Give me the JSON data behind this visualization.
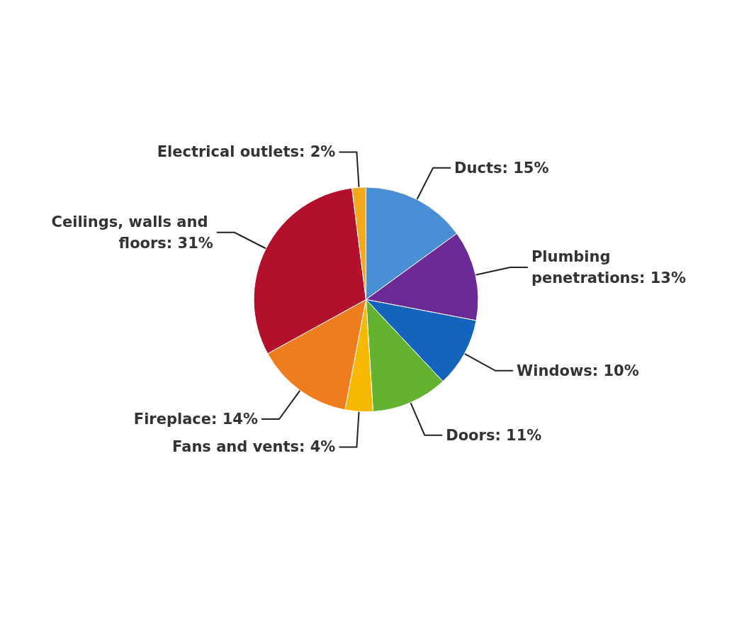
{
  "chart_data": {
    "type": "pie",
    "categories": [
      "Ducts: 15%",
      "Plumbing penetrations: 13%",
      "Windows: 10%",
      "Doors: 11%",
      "Fans and vents: 4%",
      "Fireplace: 14%",
      "Ceilings, walls and floors: 31%",
      "Electrical outlets: 2%"
    ],
    "values": [
      15,
      13,
      10,
      11,
      4,
      14,
      31,
      2
    ],
    "colors": [
      "#4a8fd6",
      "#6b2a96",
      "#1463bd",
      "#63b232",
      "#f7b900",
      "#ef7d1e",
      "#b3102b",
      "#f4a91c"
    ]
  }
}
